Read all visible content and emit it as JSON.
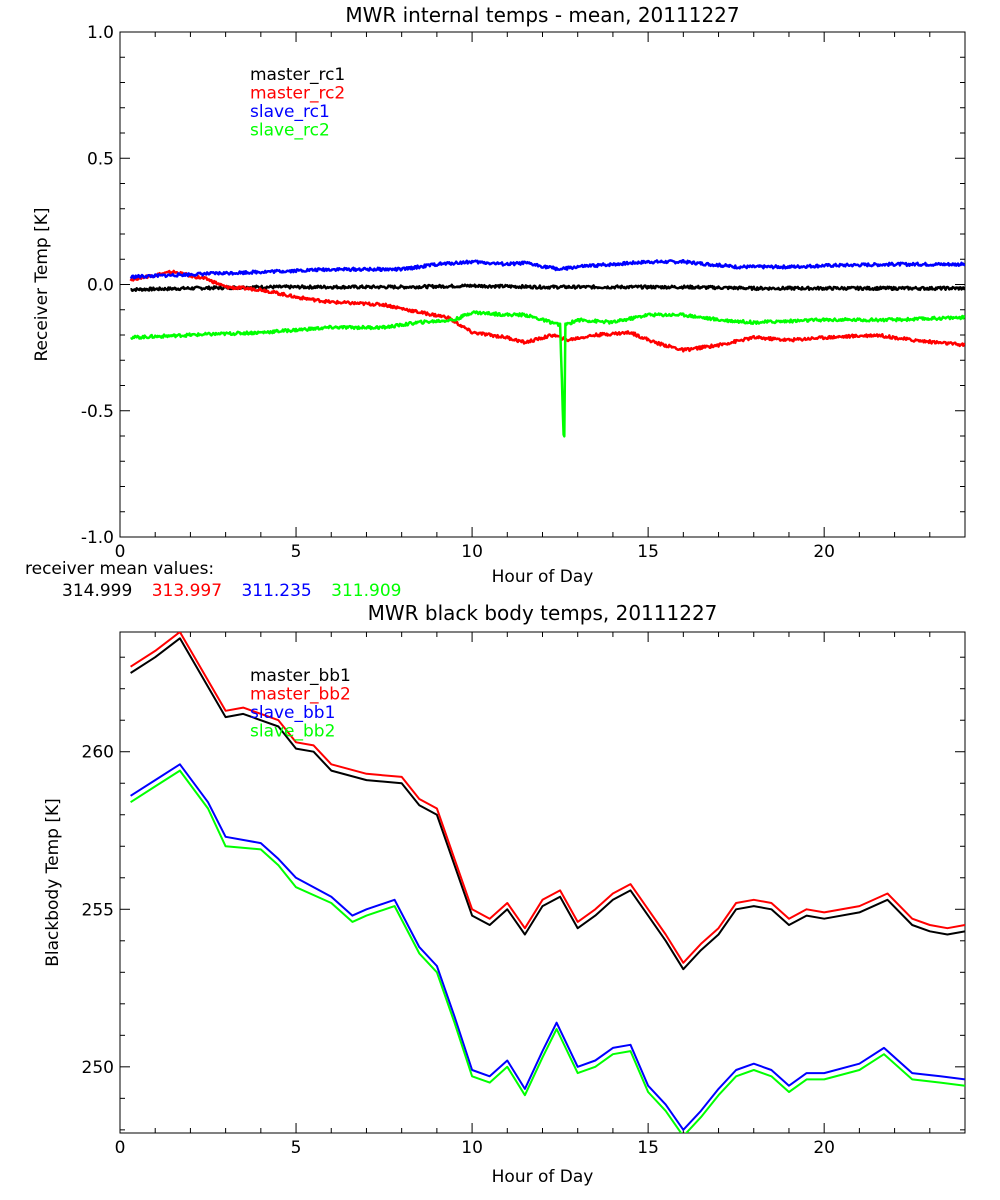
{
  "chart_data": [
    {
      "type": "line",
      "title": "MWR internal temps - mean, 20111227",
      "xlabel": "Hour of Day",
      "ylabel": "Receiver Temp [K]",
      "xlim": [
        0,
        24
      ],
      "ylim": [
        -1.0,
        1.0
      ],
      "xticks": [
        "0",
        "5",
        "10",
        "15",
        "20"
      ],
      "yticks": [
        "-1.0",
        "-0.5",
        "0.0",
        "0.5",
        "1.0"
      ],
      "legend_placement": "top-left",
      "grid": false,
      "series": [
        {
          "name": "master_rc1",
          "color": "#000000",
          "x": [
            0.3,
            2,
            4,
            6,
            8,
            10,
            12,
            14,
            16,
            18,
            20,
            22,
            24
          ],
          "y": [
            -0.02,
            -0.015,
            -0.01,
            -0.01,
            -0.01,
            -0.005,
            -0.01,
            -0.01,
            -0.01,
            -0.015,
            -0.015,
            -0.015,
            -0.015
          ]
        },
        {
          "name": "master_rc2",
          "color": "#ff0000",
          "x": [
            0.3,
            1.5,
            2.5,
            3,
            4,
            5,
            6,
            7.5,
            8.5,
            9.3,
            10,
            11,
            11.5,
            12.3,
            12.7,
            13.5,
            14.5,
            15.2,
            16,
            17,
            18,
            19,
            20,
            21.5,
            22.5,
            24
          ],
          "y": [
            0.02,
            0.05,
            0.02,
            -0.01,
            -0.02,
            -0.05,
            -0.07,
            -0.08,
            -0.11,
            -0.13,
            -0.19,
            -0.21,
            -0.23,
            -0.2,
            -0.22,
            -0.2,
            -0.19,
            -0.23,
            -0.26,
            -0.24,
            -0.21,
            -0.22,
            -0.21,
            -0.2,
            -0.22,
            -0.24
          ]
        },
        {
          "name": "slave_rc1",
          "color": "#0000ff",
          "x": [
            0.3,
            2,
            4,
            6,
            8,
            9,
            10,
            11,
            11.5,
            12.5,
            13,
            14,
            15,
            16,
            17.5,
            19,
            20,
            22,
            24
          ],
          "y": [
            0.03,
            0.04,
            0.05,
            0.06,
            0.06,
            0.08,
            0.09,
            0.08,
            0.085,
            0.06,
            0.07,
            0.08,
            0.09,
            0.09,
            0.07,
            0.07,
            0.075,
            0.08,
            0.08
          ]
        },
        {
          "name": "slave_rc2",
          "color": "#00ff00",
          "x": [
            0.3,
            2,
            4,
            6,
            7.5,
            8.5,
            9.5,
            10,
            11,
            11.5,
            12.5,
            12.6,
            12.62,
            12.65,
            13,
            14,
            15,
            16,
            17,
            18,
            20,
            22,
            24
          ],
          "y": [
            -0.21,
            -0.2,
            -0.19,
            -0.17,
            -0.17,
            -0.15,
            -0.14,
            -0.11,
            -0.12,
            -0.12,
            -0.16,
            -0.6,
            -0.6,
            -0.16,
            -0.14,
            -0.15,
            -0.12,
            -0.12,
            -0.14,
            -0.15,
            -0.14,
            -0.14,
            -0.13
          ]
        }
      ]
    },
    {
      "type": "line",
      "title": "MWR black body temps, 20111227",
      "xlabel": "Hour of Day",
      "ylabel": "Blackbody Temp [K]",
      "xlim": [
        0,
        24
      ],
      "ylim": [
        247.9,
        263.8
      ],
      "xticks": [
        "0",
        "5",
        "10",
        "15",
        "20"
      ],
      "yticks": [
        "250",
        "255",
        "260"
      ],
      "legend_placement": "top-left",
      "grid": false,
      "series": [
        {
          "name": "master_bb1",
          "color": "#000000",
          "x": [
            0.3,
            1,
            1.7,
            3,
            3.5,
            4.5,
            5,
            5.5,
            6,
            7,
            8,
            8.5,
            9,
            9.5,
            10,
            10.5,
            11,
            11.5,
            12,
            12.5,
            13,
            13.5,
            14,
            14.5,
            15,
            15.5,
            16,
            16.5,
            17,
            17.5,
            18,
            18.5,
            19,
            19.5,
            20,
            21,
            21.8,
            22.5,
            23,
            23.5,
            24
          ],
          "y": [
            262.5,
            263.0,
            263.6,
            261.1,
            261.2,
            260.8,
            260.1,
            260.0,
            259.4,
            259.1,
            259.0,
            258.3,
            258.0,
            256.4,
            254.8,
            254.5,
            255.0,
            254.2,
            255.1,
            255.4,
            254.4,
            254.8,
            255.3,
            255.6,
            254.8,
            254.0,
            253.1,
            253.7,
            254.2,
            255.0,
            255.1,
            255.0,
            254.5,
            254.8,
            254.7,
            254.9,
            255.3,
            254.5,
            254.3,
            254.2,
            254.3
          ]
        },
        {
          "name": "master_bb2",
          "color": "#ff0000",
          "x": [
            0.3,
            1,
            1.7,
            3,
            3.5,
            4.5,
            5,
            5.5,
            6,
            7,
            8,
            8.5,
            9,
            9.5,
            10,
            10.5,
            11,
            11.5,
            12,
            12.5,
            13,
            13.5,
            14,
            14.5,
            15,
            15.5,
            16,
            16.5,
            17,
            17.5,
            18,
            18.5,
            19,
            19.5,
            20,
            21,
            21.8,
            22.5,
            23,
            23.5,
            24
          ],
          "y": [
            262.7,
            263.2,
            263.8,
            261.3,
            261.4,
            261.0,
            260.3,
            260.2,
            259.6,
            259.3,
            259.2,
            258.5,
            258.2,
            256.6,
            255.0,
            254.7,
            255.2,
            254.4,
            255.3,
            255.6,
            254.6,
            255.0,
            255.5,
            255.8,
            255.0,
            254.2,
            253.3,
            253.9,
            254.4,
            255.2,
            255.3,
            255.2,
            254.7,
            255.0,
            254.9,
            255.1,
            255.5,
            254.7,
            254.5,
            254.4,
            254.5
          ]
        },
        {
          "name": "slave_bb1",
          "color": "#0000ff",
          "x": [
            0.3,
            1,
            1.7,
            2.5,
            3,
            4,
            4.5,
            5,
            6,
            6.6,
            7,
            7.8,
            8.5,
            9,
            9.5,
            10,
            10.5,
            11,
            11.5,
            12,
            12.4,
            13,
            13.5,
            14,
            14.5,
            15,
            15.5,
            16,
            16.5,
            17,
            17.5,
            18,
            18.5,
            19,
            19.5,
            20,
            21,
            21.7,
            22.5,
            23.3,
            24
          ],
          "y": [
            258.6,
            259.1,
            259.6,
            258.4,
            257.3,
            257.1,
            256.6,
            256.0,
            255.4,
            254.8,
            255.0,
            255.3,
            253.8,
            253.2,
            251.6,
            249.9,
            249.7,
            250.2,
            249.3,
            250.5,
            251.4,
            250.0,
            250.2,
            250.6,
            250.7,
            249.4,
            248.8,
            248.0,
            248.6,
            249.3,
            249.9,
            250.1,
            249.9,
            249.4,
            249.8,
            249.8,
            250.1,
            250.6,
            249.8,
            249.7,
            249.6
          ]
        },
        {
          "name": "slave_bb2",
          "color": "#00ff00",
          "x": [
            0.3,
            1,
            1.7,
            2.5,
            3,
            4,
            4.5,
            5,
            6,
            6.6,
            7,
            7.8,
            8.5,
            9,
            9.5,
            10,
            10.5,
            11,
            11.5,
            12,
            12.4,
            13,
            13.5,
            14,
            14.5,
            15,
            15.5,
            16,
            16.5,
            17,
            17.5,
            18,
            18.5,
            19,
            19.5,
            20,
            21,
            21.7,
            22.5,
            23.3,
            24
          ],
          "y": [
            258.4,
            258.9,
            259.4,
            258.2,
            257.0,
            256.9,
            256.4,
            255.7,
            255.2,
            254.6,
            254.8,
            255.1,
            253.6,
            253.0,
            251.4,
            249.7,
            249.5,
            250.0,
            249.1,
            250.3,
            251.2,
            249.8,
            250.0,
            250.4,
            250.5,
            249.2,
            248.6,
            247.8,
            248.4,
            249.1,
            249.7,
            249.9,
            249.7,
            249.2,
            249.6,
            249.6,
            249.9,
            250.4,
            249.6,
            249.5,
            249.4
          ]
        }
      ]
    }
  ],
  "receiver_mean": {
    "label": "receiver mean values:",
    "values": [
      {
        "text": "314.999",
        "color": "#000000"
      },
      {
        "text": "313.997",
        "color": "#ff0000"
      },
      {
        "text": "311.235",
        "color": "#0000ff"
      },
      {
        "text": "311.909",
        "color": "#00ff00"
      }
    ]
  }
}
